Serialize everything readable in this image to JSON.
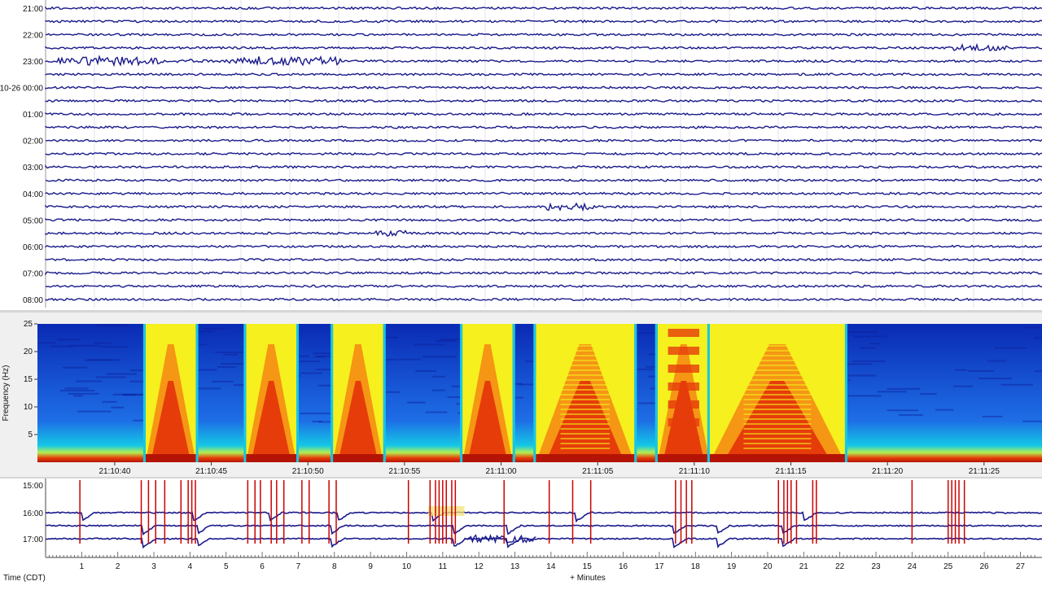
{
  "helicorder": {
    "hour_labels": [
      "21:00",
      "22:00",
      "23:00",
      "10-26 00:00",
      "01:00",
      "02:00",
      "03:00",
      "04:00",
      "05:00",
      "06:00",
      "07:00",
      "08:00"
    ],
    "trace_color": "#1a1a8c"
  },
  "chart_data": [
    {
      "type": "heatmap",
      "ylabel": "Frequency (Hz)",
      "y_ticks": [
        5,
        10,
        15,
        20,
        25
      ],
      "ylim": [
        0,
        25
      ],
      "x_tick_labels": [
        "21:10:40",
        "21:10:45",
        "21:10:50",
        "21:10:55",
        "21:11:00",
        "21:11:05",
        "21:11:10",
        "21:11:15",
        "21:11:20",
        "21:11:25"
      ],
      "xlim": [
        "21:10:36",
        "21:11:28"
      ],
      "colormap": [
        "#0a2ab4",
        "#1e6ee6",
        "#14c8e6",
        "#b4f050",
        "#f5f01e",
        "#f59614",
        "#e63c0a",
        "#b41405"
      ],
      "energy_bursts": [
        {
          "start": "21:10:41.6",
          "end": "21:10:44.2",
          "style": "tone"
        },
        {
          "start": "21:10:46.8",
          "end": "21:10:49.4",
          "style": "tone"
        },
        {
          "start": "21:10:51.3",
          "end": "21:10:53.9",
          "style": "tone"
        },
        {
          "start": "21:10:58.0",
          "end": "21:11:00.6",
          "style": "tone"
        },
        {
          "start": "21:11:01.8",
          "end": "21:11:06.9",
          "style": "striped"
        },
        {
          "start": "21:11:08.1",
          "end": "21:11:10.8",
          "style": "blocks"
        },
        {
          "start": "21:11:10.8",
          "end": "21:11:17.8",
          "style": "striped"
        }
      ]
    },
    {
      "type": "line",
      "xlabel": "+ Minutes",
      "ylabel": "Time (CDT)",
      "y_tick_labels": [
        "15:00",
        "16:00",
        "17:00"
      ],
      "x_ticks": [
        1,
        2,
        3,
        4,
        5,
        6,
        7,
        8,
        9,
        10,
        11,
        12,
        13,
        14,
        15,
        16,
        17,
        18,
        19,
        20,
        21,
        22,
        23,
        24,
        25,
        26,
        27
      ],
      "xlim": [
        0,
        27.6
      ],
      "trigger_color": "#cc0000",
      "trigger_minutes": [
        0.95,
        2.65,
        2.85,
        3.05,
        3.3,
        3.75,
        3.95,
        4.05,
        4.15,
        5.6,
        5.8,
        5.95,
        6.25,
        6.4,
        6.6,
        7.1,
        7.3,
        7.85,
        8.05,
        10.05,
        10.65,
        10.8,
        10.9,
        11.0,
        11.1,
        11.25,
        11.35,
        12.7,
        13.95,
        14.6,
        15.1,
        17.45,
        17.6,
        17.75,
        17.9,
        20.3,
        20.45,
        20.55,
        20.65,
        20.8,
        21.25,
        21.35,
        24.0,
        25.0,
        25.1,
        25.2,
        25.3,
        25.45
      ],
      "resets_16": [
        1.0,
        4.1,
        6.2,
        8.1,
        10.7,
        14.7,
        21.0
      ],
      "resets_17": [
        2.7,
        4.2,
        7.9,
        11.3,
        12.8,
        17.4,
        18.6,
        20.4
      ]
    }
  ]
}
